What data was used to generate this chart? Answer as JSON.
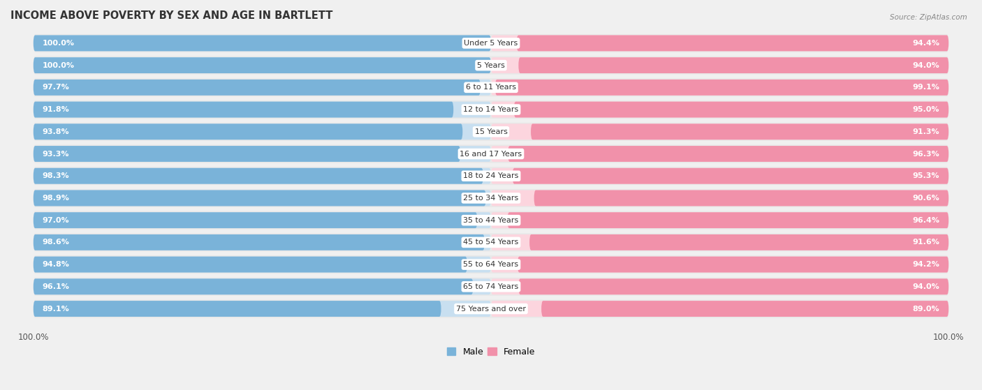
{
  "title": "INCOME ABOVE POVERTY BY SEX AND AGE IN BARTLETT",
  "source": "Source: ZipAtlas.com",
  "categories": [
    "Under 5 Years",
    "5 Years",
    "6 to 11 Years",
    "12 to 14 Years",
    "15 Years",
    "16 and 17 Years",
    "18 to 24 Years",
    "25 to 34 Years",
    "35 to 44 Years",
    "45 to 54 Years",
    "55 to 64 Years",
    "65 to 74 Years",
    "75 Years and over"
  ],
  "male_values": [
    100.0,
    100.0,
    97.7,
    91.8,
    93.8,
    93.3,
    98.3,
    98.9,
    97.0,
    98.6,
    94.8,
    96.1,
    89.1
  ],
  "female_values": [
    94.4,
    94.0,
    99.1,
    95.0,
    91.3,
    96.3,
    95.3,
    90.6,
    96.4,
    91.6,
    94.2,
    94.0,
    89.0
  ],
  "male_color": "#7ab3d9",
  "female_color": "#f191aa",
  "row_bg_color": "#e8e8e8",
  "background_color": "#f0f0f0",
  "title_fontsize": 10.5,
  "label_fontsize": 8.0,
  "category_fontsize": 8.0,
  "axis_label_fontsize": 8.5
}
